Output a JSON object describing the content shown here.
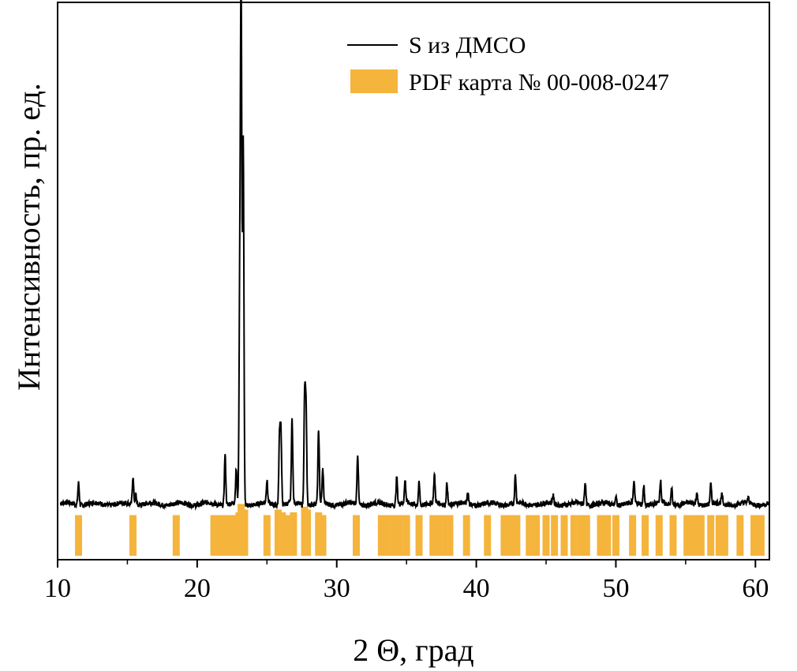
{
  "chart_data": {
    "type": "line",
    "xlabel": "2 Θ, град",
    "ylabel": "Интенсивность, пр. ед.",
    "xlim": [
      10,
      61
    ],
    "ylim": [
      0,
      100
    ],
    "x_ticks": [
      "10",
      "20",
      "30",
      "40",
      "50",
      "60"
    ],
    "y_ticks_shown": false,
    "grid": false,
    "legend_position": "top-right",
    "colors": {
      "pattern": "#000000",
      "reference": "#F5B43C"
    },
    "series": [
      {
        "name": "S из ДМСО",
        "kind": "line",
        "baseline": 10,
        "peaks": [
          {
            "x": 11.5,
            "y": 14
          },
          {
            "x": 15.4,
            "y": 15
          },
          {
            "x": 15.6,
            "y": 12
          },
          {
            "x": 22.0,
            "y": 19
          },
          {
            "x": 22.8,
            "y": 16
          },
          {
            "x": 23.05,
            "y": 46
          },
          {
            "x": 23.15,
            "y": 100
          },
          {
            "x": 23.3,
            "y": 75
          },
          {
            "x": 25.0,
            "y": 14
          },
          {
            "x": 25.9,
            "y": 22
          },
          {
            "x": 26.0,
            "y": 23
          },
          {
            "x": 26.8,
            "y": 25
          },
          {
            "x": 27.7,
            "y": 29
          },
          {
            "x": 27.8,
            "y": 27
          },
          {
            "x": 28.7,
            "y": 23
          },
          {
            "x": 29.0,
            "y": 16
          },
          {
            "x": 31.5,
            "y": 19
          },
          {
            "x": 34.3,
            "y": 15
          },
          {
            "x": 34.9,
            "y": 14
          },
          {
            "x": 35.9,
            "y": 14
          },
          {
            "x": 37.0,
            "y": 15
          },
          {
            "x": 37.9,
            "y": 14
          },
          {
            "x": 39.4,
            "y": 12
          },
          {
            "x": 42.8,
            "y": 15
          },
          {
            "x": 45.5,
            "y": 11.5
          },
          {
            "x": 47.8,
            "y": 14
          },
          {
            "x": 50.0,
            "y": 11.5
          },
          {
            "x": 51.3,
            "y": 14
          },
          {
            "x": 52.0,
            "y": 13.5
          },
          {
            "x": 53.2,
            "y": 14
          },
          {
            "x": 54.0,
            "y": 13
          },
          {
            "x": 55.8,
            "y": 12
          },
          {
            "x": 56.8,
            "y": 13.5
          },
          {
            "x": 57.6,
            "y": 11.5
          },
          {
            "x": 59.5,
            "y": 11
          }
        ]
      },
      {
        "name": "PDF карта № 00-008-0247",
        "kind": "reference-bars",
        "bars": [
          {
            "x": 11.5,
            "h": 8
          },
          {
            "x": 15.4,
            "h": 8
          },
          {
            "x": 18.5,
            "h": 8
          },
          {
            "x": 21.2,
            "h": 8
          },
          {
            "x": 21.7,
            "h": 8
          },
          {
            "x": 22.1,
            "h": 8
          },
          {
            "x": 22.6,
            "h": 8
          },
          {
            "x": 23.0,
            "h": 8.5
          },
          {
            "x": 23.15,
            "h": 10
          },
          {
            "x": 23.4,
            "h": 9
          },
          {
            "x": 25.0,
            "h": 8
          },
          {
            "x": 25.8,
            "h": 9
          },
          {
            "x": 26.1,
            "h": 8.5
          },
          {
            "x": 26.5,
            "h": 8
          },
          {
            "x": 26.9,
            "h": 8.5
          },
          {
            "x": 27.7,
            "h": 9.5
          },
          {
            "x": 27.9,
            "h": 9
          },
          {
            "x": 28.7,
            "h": 8.5
          },
          {
            "x": 29.0,
            "h": 8
          },
          {
            "x": 31.4,
            "h": 8
          },
          {
            "x": 33.2,
            "h": 8
          },
          {
            "x": 33.6,
            "h": 8
          },
          {
            "x": 34.1,
            "h": 8
          },
          {
            "x": 34.5,
            "h": 8
          },
          {
            "x": 35.0,
            "h": 8
          },
          {
            "x": 35.9,
            "h": 8
          },
          {
            "x": 36.9,
            "h": 8
          },
          {
            "x": 37.3,
            "h": 8
          },
          {
            "x": 37.8,
            "h": 8
          },
          {
            "x": 38.1,
            "h": 8
          },
          {
            "x": 39.3,
            "h": 8
          },
          {
            "x": 40.8,
            "h": 8
          },
          {
            "x": 42.0,
            "h": 8
          },
          {
            "x": 42.4,
            "h": 8
          },
          {
            "x": 42.9,
            "h": 8
          },
          {
            "x": 43.8,
            "h": 8
          },
          {
            "x": 44.3,
            "h": 8
          },
          {
            "x": 45.0,
            "h": 8
          },
          {
            "x": 45.6,
            "h": 8
          },
          {
            "x": 46.3,
            "h": 8
          },
          {
            "x": 47.0,
            "h": 8
          },
          {
            "x": 47.5,
            "h": 8
          },
          {
            "x": 47.9,
            "h": 8
          },
          {
            "x": 48.9,
            "h": 8
          },
          {
            "x": 49.4,
            "h": 8
          },
          {
            "x": 50.0,
            "h": 8
          },
          {
            "x": 51.2,
            "h": 8
          },
          {
            "x": 52.1,
            "h": 8
          },
          {
            "x": 53.1,
            "h": 8
          },
          {
            "x": 54.1,
            "h": 8
          },
          {
            "x": 55.1,
            "h": 8
          },
          {
            "x": 55.6,
            "h": 8
          },
          {
            "x": 56.1,
            "h": 8
          },
          {
            "x": 56.8,
            "h": 8
          },
          {
            "x": 57.4,
            "h": 8
          },
          {
            "x": 57.8,
            "h": 8
          },
          {
            "x": 58.9,
            "h": 8
          },
          {
            "x": 59.9,
            "h": 8
          },
          {
            "x": 60.4,
            "h": 8
          }
        ]
      }
    ]
  }
}
